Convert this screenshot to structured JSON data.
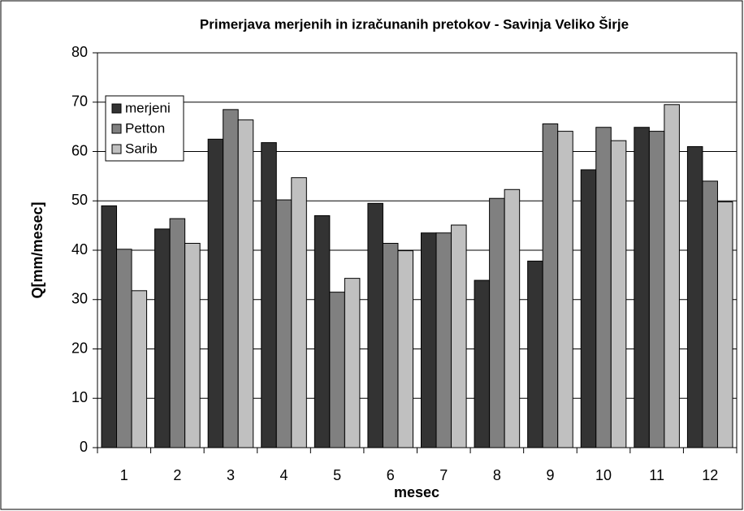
{
  "chart_data": {
    "type": "bar",
    "title": "Primerjava merjenih in izračunanih pretokov - Savinja Veliko Širje",
    "x_label": "mesec",
    "y_label": "Q[mm/mesec]",
    "categories": [
      "1",
      "2",
      "3",
      "4",
      "5",
      "6",
      "7",
      "8",
      "9",
      "10",
      "11",
      "12"
    ],
    "series": [
      {
        "name": "merjeni",
        "color": "#333333",
        "values": [
          49,
          44.3,
          62.5,
          61.8,
          47,
          49.5,
          43.5,
          33.9,
          37.8,
          56.3,
          64.9,
          61
        ]
      },
      {
        "name": "Petton",
        "color": "#808080",
        "values": [
          40.2,
          46.4,
          68.5,
          50.2,
          31.5,
          41.4,
          43.5,
          50.5,
          65.6,
          64.9,
          64.1,
          54
        ]
      },
      {
        "name": "Sarib",
        "color": "#c0c0c0",
        "values": [
          31.8,
          41.4,
          66.4,
          54.7,
          34.3,
          39.9,
          45.1,
          52.3,
          64.1,
          62.2,
          69.5,
          49.8
        ]
      }
    ],
    "ylim": [
      0,
      80
    ],
    "yticks": [
      0,
      10,
      20,
      30,
      40,
      50,
      60,
      70,
      80
    ],
    "grid": true,
    "legend": "upper-left"
  }
}
